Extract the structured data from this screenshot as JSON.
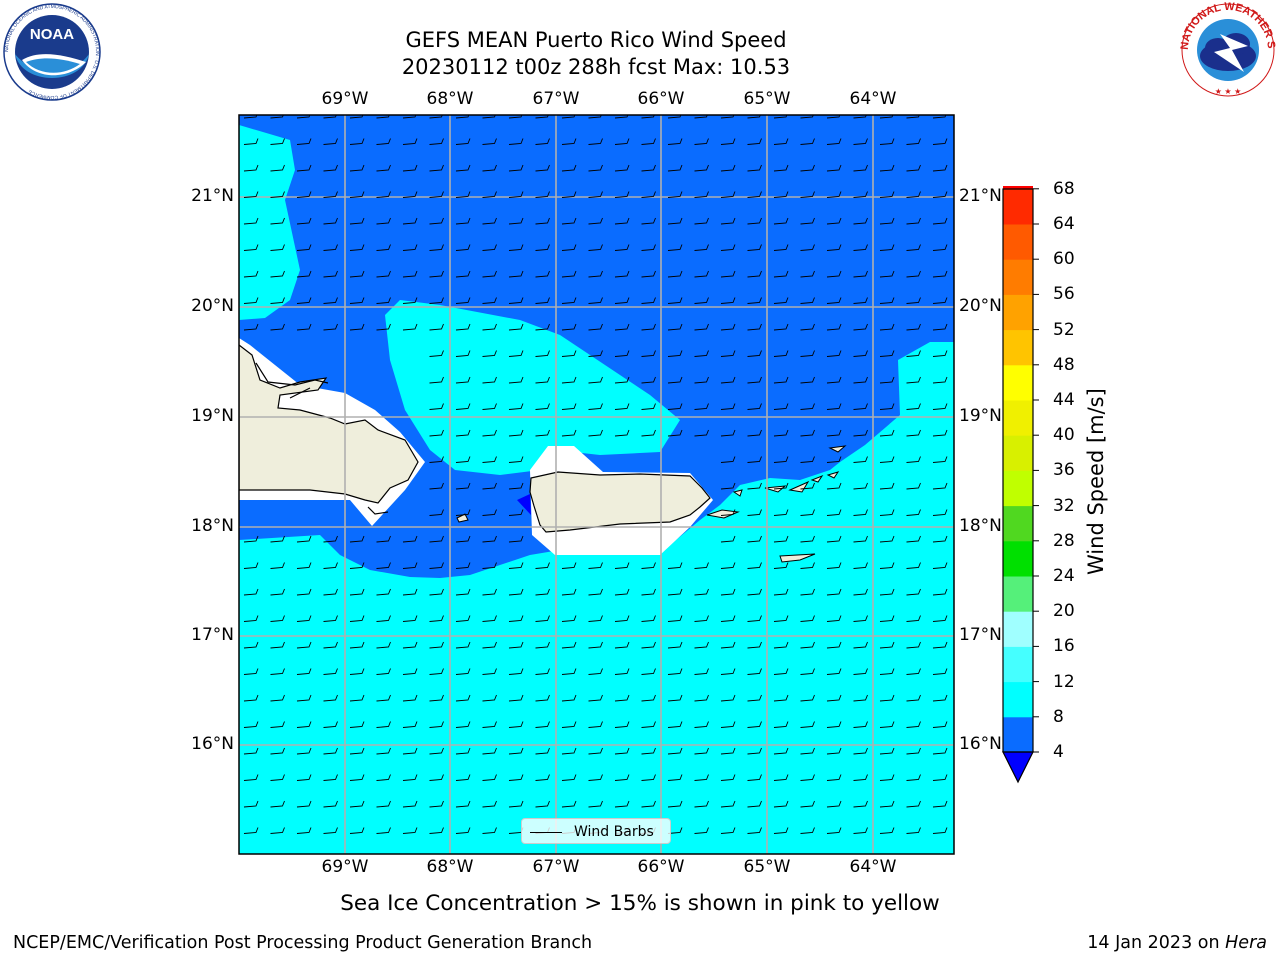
{
  "header": {
    "title_line1": "GEFS MEAN Puerto Rico Wind Speed",
    "title_line2": "20230112 t00z 288h fcst   Max: 10.53"
  },
  "logos": {
    "noaa_text": "NOAA",
    "noaa_ring": "NATIONAL OCEANIC AND ATMOSPHERIC ADMINISTRATION · U.S. DEPARTMENT OF COMMERCE",
    "nws_ring": "NATIONAL WEATHER SERVICE"
  },
  "map": {
    "lon_labels": [
      "69°W",
      "68°W",
      "67°W",
      "66°W",
      "65°W",
      "64°W"
    ],
    "lat_labels": [
      "21°N",
      "20°N",
      "19°N",
      "18°N",
      "17°N",
      "16°N"
    ],
    "colors": {
      "calm": "#0000ff",
      "band_4_8": "#0a6cff",
      "band_8_12": "#00ffff",
      "land": "#efeedc",
      "nodata": "#ffffff",
      "grid": "#b0b0b0"
    },
    "legend_label": "Wind Barbs",
    "wind_barb_direction": "easterly"
  },
  "colorbar": {
    "label": "Wind Speed [m/s]",
    "levels": [
      4,
      8,
      12,
      16,
      20,
      24,
      28,
      32,
      36,
      40,
      44,
      48,
      52,
      56,
      60,
      64,
      68
    ],
    "level_labels": [
      "4",
      "8",
      "12",
      "16",
      "20",
      "24",
      "28",
      "32",
      "36",
      "40",
      "44",
      "48",
      "52",
      "56",
      "60",
      "64",
      "68"
    ],
    "colors": [
      "#0a6cff",
      "#00ffff",
      "#45ffff",
      "#a0ffff",
      "#55f07a",
      "#00e000",
      "#50d820",
      "#c0ff00",
      "#d8f000",
      "#f0f000",
      "#ffff00",
      "#ffc400",
      "#ffa200",
      "#ff7c00",
      "#ff5a00",
      "#ff2a00",
      "#ff0000"
    ],
    "extend_min_color": "#0000ff"
  },
  "note": "Sea Ice Concentration > 15% is shown in pink to yellow",
  "footer": {
    "left": "NCEP/EMC/Verification Post Processing Product Generation Branch",
    "date": "14 Jan 2023 on ",
    "machine": "Hera"
  }
}
